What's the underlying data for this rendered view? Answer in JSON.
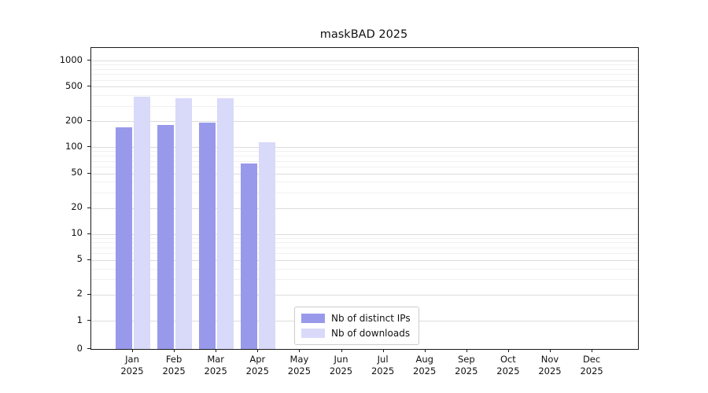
{
  "chart_data": {
    "type": "bar",
    "title": "maskBAD 2025",
    "year_label": "2025",
    "categories": [
      "Jan",
      "Feb",
      "Mar",
      "Apr",
      "May",
      "Jun",
      "Jul",
      "Aug",
      "Sep",
      "Oct",
      "Nov",
      "Dec"
    ],
    "series": [
      {
        "name": "Nb of distinct IPs",
        "color": "#9999ec",
        "values": [
          170,
          183,
          192,
          65,
          0,
          0,
          0,
          0,
          0,
          0,
          0,
          0
        ]
      },
      {
        "name": "Nb of downloads",
        "color": "#d9d9fa",
        "values": [
          380,
          365,
          370,
          115,
          0,
          0,
          0,
          0,
          0,
          0,
          0,
          0
        ]
      }
    ],
    "yscale": "symlog",
    "y_ticks": [
      0,
      1,
      2,
      5,
      10,
      20,
      50,
      100,
      200,
      500,
      1000
    ],
    "y_minor_ticks": [
      3,
      4,
      6,
      7,
      8,
      9,
      30,
      40,
      60,
      70,
      80,
      90,
      300,
      400,
      600,
      700,
      800,
      900
    ],
    "ylim": [
      0,
      1400
    ],
    "xlabel": "",
    "ylabel": "",
    "grid": "horizontal",
    "legend_position": "lower-center-left"
  }
}
